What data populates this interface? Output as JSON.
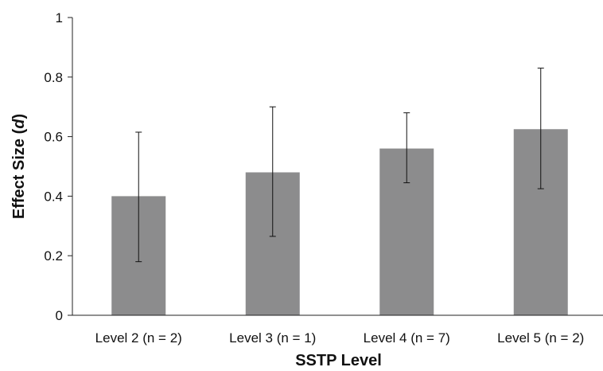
{
  "chart_data": {
    "type": "bar",
    "title": "",
    "xlabel": "SSTP Level",
    "ylabel": {
      "prefix": "Effect Size (",
      "symbol": "d",
      "suffix": ")"
    },
    "categories": [
      "Level 2 (n = 2)",
      "Level 3 (n = 1)",
      "Level 4 (n = 7)",
      "Level 5 (n = 2)"
    ],
    "values": [
      0.4,
      0.48,
      0.56,
      0.625
    ],
    "error_bars": {
      "lower": [
        0.18,
        0.265,
        0.445,
        0.425
      ],
      "upper": [
        0.615,
        0.7,
        0.68,
        0.83
      ]
    },
    "ylim": [
      0,
      1
    ],
    "yticks": [
      "0",
      "0.2",
      "0.4",
      "0.6",
      "0.8",
      "1"
    ],
    "ytick_values": [
      0,
      0.2,
      0.4,
      0.6,
      0.8,
      1
    ],
    "grid": false,
    "legend": "none",
    "colors": {
      "bar": "#8c8c8d",
      "axis": "#222222",
      "error_bar": "#111111",
      "text": "#111111"
    }
  }
}
